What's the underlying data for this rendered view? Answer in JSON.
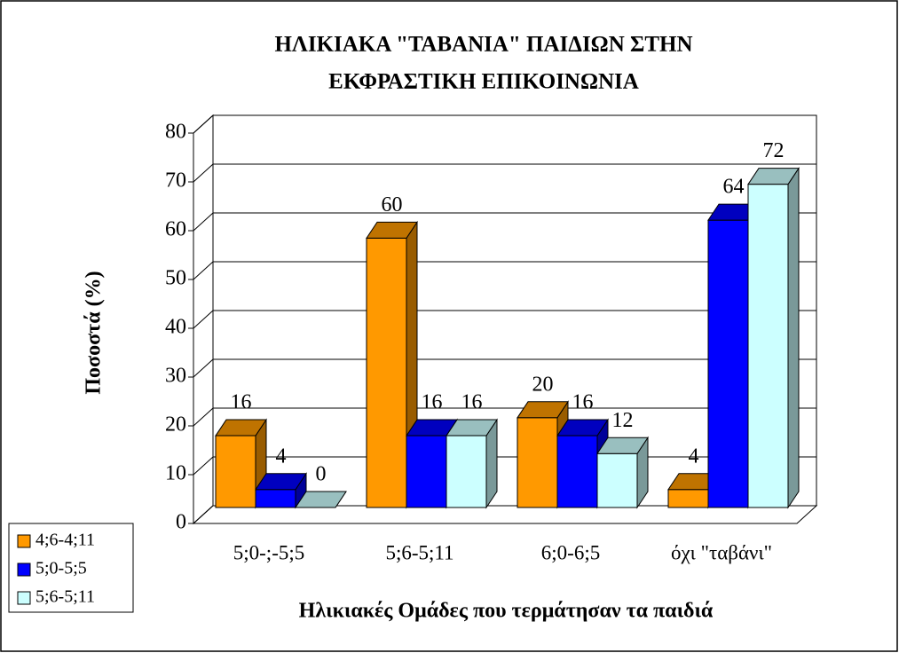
{
  "chart_data": {
    "type": "bar3d",
    "title": [
      "ΗΛΙΚΙΑΚΑ \"ΤΑΒΑΝΙΑ\" ΠΑΙΔΙΩΝ ΣΤΗΝ",
      "ΕΚΦΡΑΣΤΙΚΗ ΕΠΙΚΟΙΝΩΝΙΑ"
    ],
    "y_label": "Ποσοστά (%)",
    "x_label": "Ηλικιακές Ομάδες που τερμάτησαν τα παιδιά",
    "categories": [
      "5;0-;-5;5",
      "5;6-5;11",
      "6;0-6;5",
      "όχι \"ταβάνι\""
    ],
    "series": [
      {
        "name": "4;6-4;11",
        "color": "#ff9900",
        "values": [
          16,
          60,
          20,
          4
        ]
      },
      {
        "name": "5;0-5;5",
        "color": "#0000ff",
        "values": [
          4,
          16,
          16,
          64
        ]
      },
      {
        "name": "5;6-5;11",
        "color": "#ccffff",
        "values": [
          0,
          16,
          12,
          72
        ]
      }
    ],
    "ylim": [
      0,
      80
    ],
    "yticks": [
      0,
      10,
      20,
      30,
      40,
      50,
      60,
      70,
      80
    ],
    "grid": true,
    "legend": "bottom-left"
  }
}
